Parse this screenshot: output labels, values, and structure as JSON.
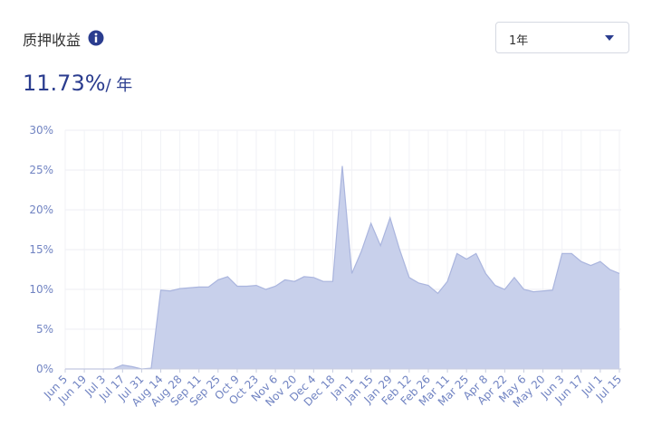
{
  "header": {
    "title": "质押收益",
    "stat_value": "11.73%",
    "stat_unit": "/ 年",
    "period": "1年"
  },
  "chart_data": {
    "type": "area",
    "categories": [
      "Jun 5",
      null,
      "Jun 19",
      null,
      "Jul 3",
      null,
      "Jul 17",
      null,
      "Jul 31",
      null,
      "Aug 14",
      null,
      "Aug 28",
      null,
      "Sep 11",
      null,
      "Sep 25",
      null,
      "Oct 9",
      null,
      "Oct 23",
      null,
      "Nov 6",
      null,
      "Nov 20",
      null,
      "Dec 4",
      null,
      "Dec 18",
      null,
      "Jan 1",
      null,
      "Jan 15",
      null,
      "Jan 29",
      null,
      "Feb 12",
      null,
      "Feb 26",
      null,
      "Mar 11",
      null,
      "Mar 25",
      null,
      "Apr 8",
      null,
      "Apr 22",
      null,
      "May 6",
      null,
      "May 20",
      null,
      "Jun 3",
      null,
      "Jun 17",
      null,
      "Jul 1",
      null,
      "Jul 15"
    ],
    "values": [
      0,
      0,
      0,
      0,
      0,
      0,
      0.5,
      0.3,
      0,
      0.1,
      9.9,
      9.8,
      10.1,
      10.2,
      10.3,
      10.3,
      11.2,
      11.6,
      10.4,
      10.4,
      10.5,
      10.0,
      10.4,
      11.2,
      11.0,
      11.6,
      11.5,
      11.0,
      11.0,
      25.5,
      12.0,
      14.8,
      18.3,
      15.5,
      19.0,
      15.0,
      11.5,
      10.8,
      10.5,
      9.5,
      11.0,
      14.5,
      13.8,
      14.5,
      12.0,
      10.5,
      10.0,
      11.5,
      10.0,
      9.7,
      9.8,
      9.9,
      14.5,
      14.5,
      13.5,
      13.0,
      13.5,
      12.5,
      12.0
    ],
    "color": "#c5cdea",
    "line_color": "#aab5de",
    "ylim": [
      0,
      30
    ],
    "yticks": [
      {
        "value": 0,
        "label": "0%"
      },
      {
        "value": 5,
        "label": "5%"
      },
      {
        "value": 10,
        "label": "10%"
      },
      {
        "value": 15,
        "label": "15%"
      },
      {
        "value": 20,
        "label": "20%"
      },
      {
        "value": 25,
        "label": "25%"
      },
      {
        "value": 30,
        "label": "30%"
      }
    ],
    "grid": true
  }
}
